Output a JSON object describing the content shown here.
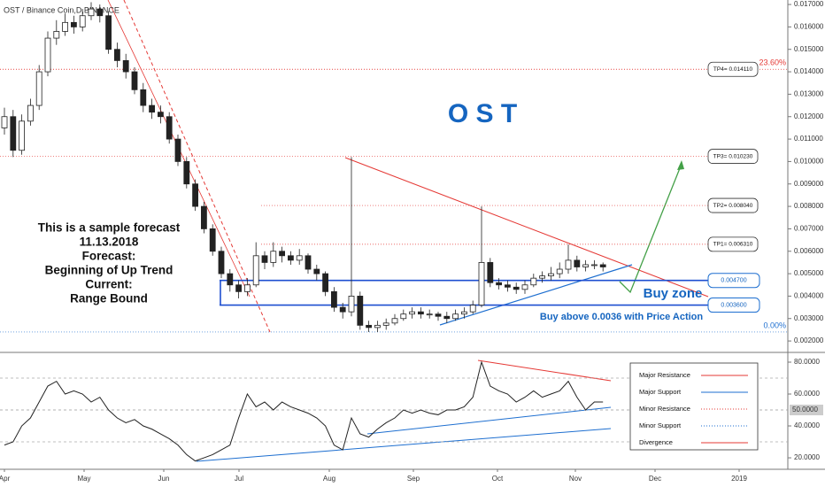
{
  "header": {
    "symbol": "OST / Binance Coin,D,BINANCE",
    "title": "O S T"
  },
  "notes": {
    "forecast": [
      "This is a sample forecast",
      "11.13.2018",
      "Forecast:",
      "Beginning of Up Trend",
      "Current:",
      "Range Bound"
    ],
    "buy_zone": "Buy zone",
    "buy_above": "Buy above 0.0036 with Price Action"
  },
  "chart_data": [
    {
      "type": "candlestick",
      "open": [
        0.0115,
        0.012,
        0.0105,
        0.0118,
        0.0125,
        0.014,
        0.0155,
        0.0158,
        0.0162,
        0.016,
        0.0165,
        0.0168,
        0.0165,
        0.015,
        0.0145,
        0.014,
        0.0132,
        0.0125,
        0.0122,
        0.012,
        0.011,
        0.01,
        0.009,
        0.008,
        0.007,
        0.006,
        0.005,
        0.0045,
        0.0042,
        0.0045,
        0.0058,
        0.0055,
        0.006,
        0.0058,
        0.0056,
        0.0058,
        0.0052,
        0.005,
        0.0042,
        0.0035,
        0.0033,
        0.004,
        0.0027,
        0.0026,
        0.0027,
        0.0028,
        0.003,
        0.0032,
        0.0033,
        0.0032,
        0.0032,
        0.0031,
        0.003,
        0.0032,
        0.0033,
        0.0036,
        0.0055,
        0.0046,
        0.0045,
        0.0044,
        0.0043,
        0.0045,
        0.0048,
        0.0049,
        0.005,
        0.0052,
        0.0056,
        0.0053,
        0.0054,
        0.0054
      ],
      "high": [
        0.0124,
        0.0123,
        0.0121,
        0.0128,
        0.0143,
        0.0158,
        0.0163,
        0.0166,
        0.0165,
        0.0168,
        0.0171,
        0.017,
        0.0167,
        0.0153,
        0.0148,
        0.0142,
        0.0135,
        0.0128,
        0.0125,
        0.0122,
        0.0112,
        0.0102,
        0.0092,
        0.0082,
        0.0072,
        0.0062,
        0.0052,
        0.0047,
        0.0048,
        0.0064,
        0.006,
        0.0064,
        0.0062,
        0.006,
        0.0061,
        0.0059,
        0.0054,
        0.0051,
        0.0044,
        0.0037,
        0.0102,
        0.0042,
        0.0029,
        0.0029,
        0.003,
        0.0032,
        0.0034,
        0.0035,
        0.0035,
        0.0034,
        0.0033,
        0.0033,
        0.0034,
        0.0035,
        0.0038,
        0.008,
        0.0057,
        0.0048,
        0.0047,
        0.0046,
        0.0047,
        0.005,
        0.0051,
        0.0053,
        0.0055,
        0.0063,
        0.0058,
        0.0056,
        0.0056,
        0.0055
      ],
      "low": [
        0.0112,
        0.0102,
        0.0103,
        0.0116,
        0.0123,
        0.0138,
        0.0152,
        0.0156,
        0.0157,
        0.0158,
        0.0163,
        0.0162,
        0.0148,
        0.0142,
        0.0137,
        0.013,
        0.0122,
        0.0119,
        0.0117,
        0.0108,
        0.0098,
        0.0088,
        0.0078,
        0.0068,
        0.0058,
        0.0048,
        0.0042,
        0.0039,
        0.004,
        0.0044,
        0.0052,
        0.0053,
        0.0055,
        0.0054,
        0.0054,
        0.005,
        0.0047,
        0.004,
        0.0033,
        0.003,
        0.0031,
        0.0025,
        0.0024,
        0.0024,
        0.0025,
        0.0027,
        0.0029,
        0.003,
        0.003,
        0.003,
        0.0029,
        0.0028,
        0.0029,
        0.003,
        0.0032,
        0.0035,
        0.0044,
        0.0043,
        0.0042,
        0.0041,
        0.0041,
        0.0044,
        0.0046,
        0.0047,
        0.0048,
        0.005,
        0.0051,
        0.0051,
        0.0052,
        0.0051
      ],
      "close": [
        0.012,
        0.0105,
        0.0118,
        0.0125,
        0.014,
        0.0155,
        0.0158,
        0.0162,
        0.016,
        0.0165,
        0.0168,
        0.0165,
        0.015,
        0.0145,
        0.014,
        0.0132,
        0.0125,
        0.0122,
        0.012,
        0.011,
        0.01,
        0.009,
        0.008,
        0.007,
        0.006,
        0.005,
        0.0045,
        0.0042,
        0.0045,
        0.0058,
        0.0055,
        0.006,
        0.0058,
        0.0056,
        0.0058,
        0.0052,
        0.005,
        0.0042,
        0.0035,
        0.0033,
        0.004,
        0.0027,
        0.0026,
        0.0027,
        0.0028,
        0.003,
        0.0032,
        0.0033,
        0.0032,
        0.0032,
        0.0031,
        0.003,
        0.0032,
        0.0033,
        0.0036,
        0.0055,
        0.0046,
        0.0045,
        0.0044,
        0.0043,
        0.0045,
        0.0048,
        0.0049,
        0.005,
        0.0052,
        0.0056,
        0.0053,
        0.0054,
        0.0054,
        0.0053
      ],
      "ylim": [
        0.00153,
        0.0172
      ],
      "yticks": [
        {
          "value": 0.002,
          "label": "0.002000"
        },
        {
          "value": 0.003,
          "label": "0.003000"
        },
        {
          "value": 0.004,
          "label": "0.004000"
        },
        {
          "value": 0.005,
          "label": "0.005000"
        },
        {
          "value": 0.006,
          "label": "0.006000"
        },
        {
          "value": 0.007,
          "label": "0.007000"
        },
        {
          "value": 0.008,
          "label": "0.008000"
        },
        {
          "value": 0.009,
          "label": "0.009000"
        },
        {
          "value": 0.01,
          "label": "0.010000"
        },
        {
          "value": 0.011,
          "label": "0.011000"
        },
        {
          "value": 0.012,
          "label": "0.012000"
        },
        {
          "value": 0.013,
          "label": "0.013000"
        },
        {
          "value": 0.014,
          "label": "0.014000"
        },
        {
          "value": 0.015,
          "label": "0.015000"
        },
        {
          "value": 0.016,
          "label": "0.016000"
        },
        {
          "value": 0.017,
          "label": "0.017000"
        }
      ],
      "xticks": [
        "Apr",
        "May",
        "Jun",
        "Jul",
        "Aug",
        "Sep",
        "Oct",
        "Nov",
        "Dec",
        "2019"
      ],
      "targets": [
        {
          "label": "TP4= 0.014110",
          "value": 0.01411
        },
        {
          "label": "TP3= 0.010230",
          "value": 0.01023
        },
        {
          "label": "TP2= 0.008040",
          "value": 0.00804
        },
        {
          "label": "TP1= 0.006310",
          "value": 0.00631
        }
      ],
      "zone": [
        {
          "label": "0.004700",
          "value": 0.0047
        },
        {
          "label": "0.003600",
          "value": 0.0036
        }
      ],
      "fib_levels": [
        {
          "ratio": 23.6,
          "label": "23.60%",
          "price": 0.01411,
          "color": "#e53935"
        },
        {
          "ratio": 0,
          "label": "0.00%",
          "price": 0.0024,
          "color": "#1e6fd0"
        }
      ]
    },
    {
      "type": "line",
      "values": [
        28,
        30,
        40,
        45,
        55,
        65,
        68,
        60,
        62,
        60,
        55,
        58,
        50,
        45,
        42,
        44,
        40,
        38,
        35,
        32,
        28,
        22,
        18,
        20,
        22,
        25,
        28,
        45,
        60,
        52,
        55,
        50,
        55,
        52,
        50,
        48,
        45,
        40,
        28,
        25,
        45,
        35,
        33,
        38,
        42,
        45,
        50,
        48,
        50,
        48,
        47,
        50,
        50,
        52,
        58,
        80,
        65,
        62,
        60,
        55,
        58,
        62,
        58,
        60,
        62,
        68,
        58,
        50,
        55,
        55
      ],
      "color": "#222222",
      "ylim": [
        12.8,
        85
      ],
      "yticks": [
        {
          "value": 20,
          "label": "20.0000"
        },
        {
          "value": 40,
          "label": "40.0000"
        },
        {
          "value": 60,
          "label": "60.0000"
        },
        {
          "value": 80,
          "label": "80.0000"
        }
      ],
      "midline": {
        "value": 50,
        "label": "50.0000"
      },
      "legend": [
        {
          "name": "Major Resistance",
          "color": "#e53935",
          "dash": "none"
        },
        {
          "name": "Major Support",
          "color": "#1e6fd0",
          "dash": "none"
        },
        {
          "name": "Minor Resistance",
          "color": "#e53935",
          "dash": "1,2"
        },
        {
          "name": "Minor Support",
          "color": "#1e6fd0",
          "dash": "1,2"
        },
        {
          "name": "Divergence",
          "color": "#e53935",
          "dash": "none"
        }
      ]
    }
  ]
}
